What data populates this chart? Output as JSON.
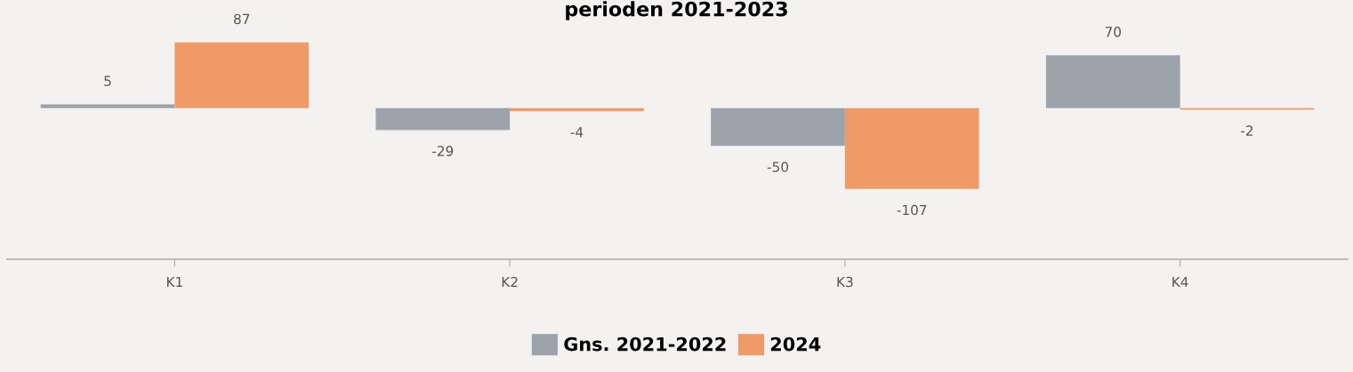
{
  "chart_data": {
    "type": "bar",
    "title": "perioden 2021-2023",
    "categories": [
      "K1",
      "K2",
      "K3",
      "K4"
    ],
    "series": [
      {
        "name": "Gns. 2021-2022",
        "color": "#9ca3aa",
        "values": [
          5,
          -29,
          -50,
          70
        ]
      },
      {
        "name": "2024",
        "color": "#f09a67",
        "values": [
          87,
          -4,
          -107,
          -2
        ]
      }
    ],
    "tick_labels": "x",
    "data_labels": true,
    "grid": false,
    "legend": "bottom"
  }
}
